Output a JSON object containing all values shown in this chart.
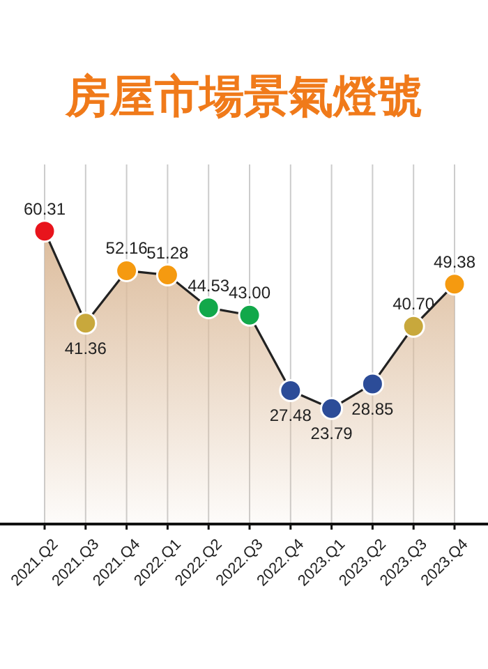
{
  "chart_data": {
    "type": "area",
    "title": "房屋市場景氣燈號",
    "grid": "x",
    "marker": "circle",
    "categories": [
      "2021.Q2",
      "2021.Q3",
      "2021.Q4",
      "2022.Q1",
      "2022.Q2",
      "2022.Q3",
      "2022.Q4",
      "2023.Q1",
      "2023.Q2",
      "2023.Q3",
      "2023.Q4"
    ],
    "series": [
      {
        "color": "#dcbc9c",
        "values": [
          60.31,
          41.36,
          52.16,
          51.28,
          44.53,
          43.0,
          27.48,
          23.79,
          28.85,
          40.7,
          49.38
        ],
        "colors": [
          "#e8141c",
          "#c8a83c",
          "#f59a10",
          "#f59a10",
          "#12a84a",
          "#12a84a",
          "#2c4c98",
          "#2c4c98",
          "#2c4c98",
          "#c8a83c",
          "#f59a10"
        ],
        "value_labels": [
          "60.31",
          "41.36",
          "52.16",
          "51.28",
          "44.53",
          "43.00",
          "27.48",
          "23.79",
          "28.85",
          "40.70",
          "49.38"
        ]
      }
    ]
  }
}
